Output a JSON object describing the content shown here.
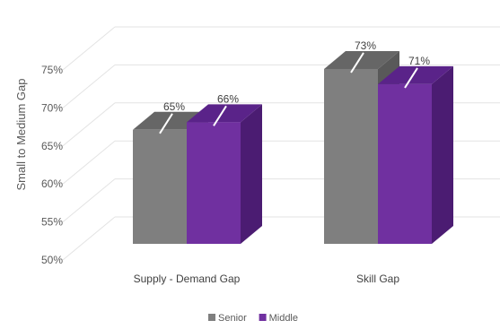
{
  "chart_data": {
    "type": "bar",
    "style": "3d-clustered-column",
    "categories": [
      "Supply - Demand Gap",
      "Skill Gap"
    ],
    "series": [
      {
        "name": "Senior",
        "values": [
          65,
          73
        ],
        "labels": [
          "65%",
          "73%"
        ],
        "color": "#7f7f7f"
      },
      {
        "name": "Middle",
        "values": [
          66,
          71
        ],
        "labels": [
          "66%",
          "71%"
        ],
        "color": "#7030a0"
      }
    ],
    "ylabel": "Small to Medium Gap",
    "xlabel": "",
    "ylim": [
      50,
      75
    ],
    "yticks": [
      "50%",
      "55%",
      "60%",
      "65%",
      "70%",
      "75%"
    ],
    "grid": true,
    "legend": "bottom"
  }
}
